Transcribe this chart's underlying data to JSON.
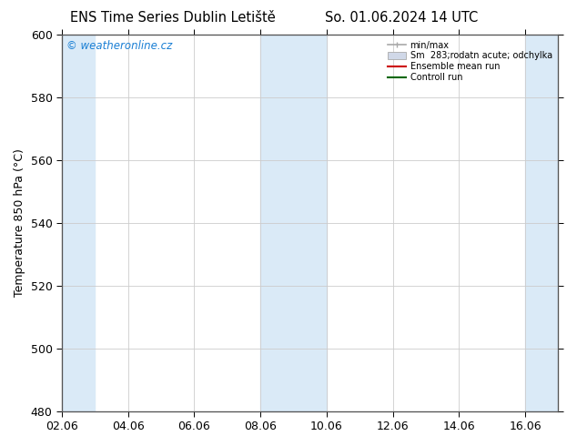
{
  "title": "ENS Time Series Dublin Letiště",
  "title2": "So. 01.06.2024 14 UTC",
  "ylabel": "Temperature 850 hPa (°C)",
  "ylim": [
    480,
    600
  ],
  "yticks": [
    480,
    500,
    520,
    540,
    560,
    580,
    600
  ],
  "xlim": [
    0,
    15
  ],
  "xtick_labels": [
    "02.06",
    "04.06",
    "06.06",
    "08.06",
    "10.06",
    "12.06",
    "14.06",
    "16.06"
  ],
  "xtick_positions": [
    0,
    2,
    4,
    6,
    8,
    10,
    12,
    14
  ],
  "shaded_bands": [
    {
      "x_start": 0.0,
      "x_end": 1.0,
      "color": "#daeaf7"
    },
    {
      "x_start": 6.0,
      "x_end": 8.0,
      "color": "#daeaf7"
    },
    {
      "x_start": 14.0,
      "x_end": 15.0,
      "color": "#daeaf7"
    }
  ],
  "minmax_line_color": "#a8a8a8",
  "std_band_color": "#d0d8e8",
  "ensemble_mean_color": "#cc0000",
  "control_run_color": "#006600",
  "watermark_text": "© weatheronline.cz",
  "watermark_color": "#1a7fd4",
  "legend_label_minmax": "min/max",
  "legend_label_std": "Sm  283;rodatn acute; odchylka",
  "legend_label_mean": "Ensemble mean run",
  "legend_label_ctrl": "Controll run",
  "bg_color": "#ffffff",
  "axes_bg_color": "#ffffff",
  "font_size": 9,
  "title_font_size": 10.5,
  "grid_color": "#cccccc",
  "spine_color": "#555555"
}
